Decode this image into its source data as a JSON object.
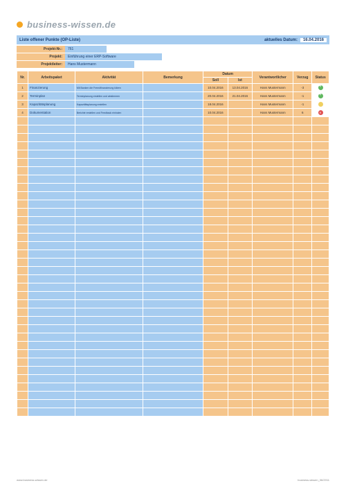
{
  "logo_text": "business-wissen.de",
  "title": "Liste offener Punkte (OP-Liste)",
  "date_label": "aktuelles Datum:",
  "date_value": "16.04.2016",
  "meta": [
    {
      "label": "Projekt-Nr.:",
      "value": "761"
    },
    {
      "label": "Projekt:",
      "value": "Einführung einer ERP-Software"
    },
    {
      "label": "Projektleiter:",
      "value": "Hans Mustermann"
    }
  ],
  "columns": {
    "nr": "Nr.",
    "ap": "Arbeitspaket",
    "akt": "Aktivität",
    "bem": "Bemerkung",
    "datum": "Datum",
    "soll": "Soll",
    "ist": "Ist",
    "ver": "Verantwortlicher",
    "vz": "Verzug",
    "st": "Status"
  },
  "rows": [
    {
      "nr": "1",
      "ap": "Finanzierung",
      "akt": "Mit Banken die Fremdfinanzierung klären",
      "bem": "",
      "soll": "10.04.2016",
      "ist": "13.04.2016",
      "ver": "Hans Mustermann",
      "vz": "-3",
      "st": "green"
    },
    {
      "nr": "2",
      "ap": "Terminplan",
      "akt": "Terminplanung erstellen und abstimmen",
      "bem": "",
      "soll": "20.04.2016",
      "ist": "21.04.2016",
      "ver": "Hans Mustermann",
      "vz": "-1",
      "st": "green"
    },
    {
      "nr": "3",
      "ap": "Kapazitätsplanung",
      "akt": "Kapazitätsplanung erstellen",
      "bem": "",
      "soll": "18.04.2016",
      "ist": "",
      "ver": "Hans Mustermann",
      "vz": "-1",
      "st": "yellow"
    },
    {
      "nr": "4",
      "ap": "Dokumentation",
      "akt": "Berichte erstellen und Feedback einholen",
      "bem": "",
      "soll": "10.04.2016",
      "ist": "",
      "ver": "Hans Mustermann",
      "vz": "6",
      "st": "red"
    }
  ],
  "empty_rows": 36,
  "footer_left": "www.business-wissen.de",
  "footer_right": "business-wissen_06/2011",
  "colors": {
    "blue": "#a6ccf0",
    "orange": "#f5c58b",
    "green": "#5fb85f",
    "yellow": "#f0d060",
    "red": "#e05050"
  },
  "col_widths": {
    "nr": 14,
    "ap": 62,
    "akt": 90,
    "bem": 80,
    "soll": 32,
    "ist": 32,
    "ver": 54,
    "vz": 24,
    "st": 22
  }
}
